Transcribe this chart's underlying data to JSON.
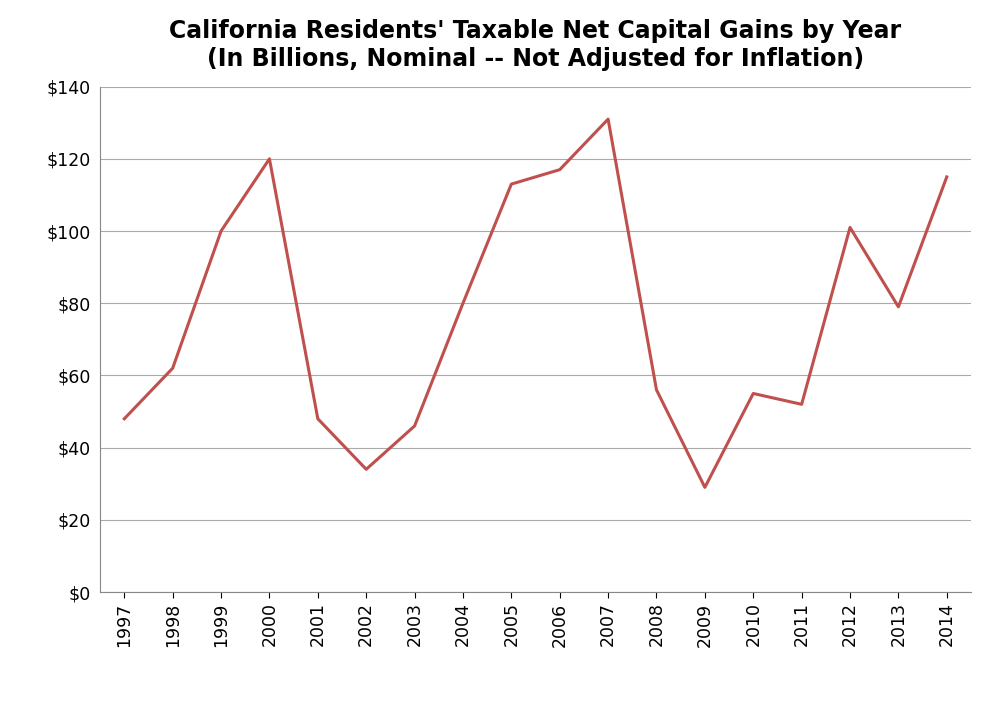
{
  "years": [
    "1997",
    "1998",
    "1999",
    "2000",
    "2001",
    "2002",
    "2003",
    "2004",
    "2005",
    "2006",
    "2007",
    "2008",
    "2009",
    "2010",
    "2011",
    "2012",
    "2013",
    "2014"
  ],
  "values": [
    48,
    62,
    100,
    120,
    48,
    34,
    46,
    80,
    113,
    117,
    131,
    56,
    29,
    55,
    52,
    101,
    79,
    115
  ],
  "title_line1": "California Residents' Taxable Net Capital Gains by Year",
  "title_line2": "(In Billions, Nominal -- Not Adjusted for Inflation)",
  "line_color": "#c0504d",
  "line_width": 2.2,
  "ylim": [
    0,
    140
  ],
  "ytick_step": 20,
  "background_color": "#ffffff",
  "grid_color": "#aaaaaa",
  "title_fontsize": 17,
  "tick_fontsize": 12.5
}
